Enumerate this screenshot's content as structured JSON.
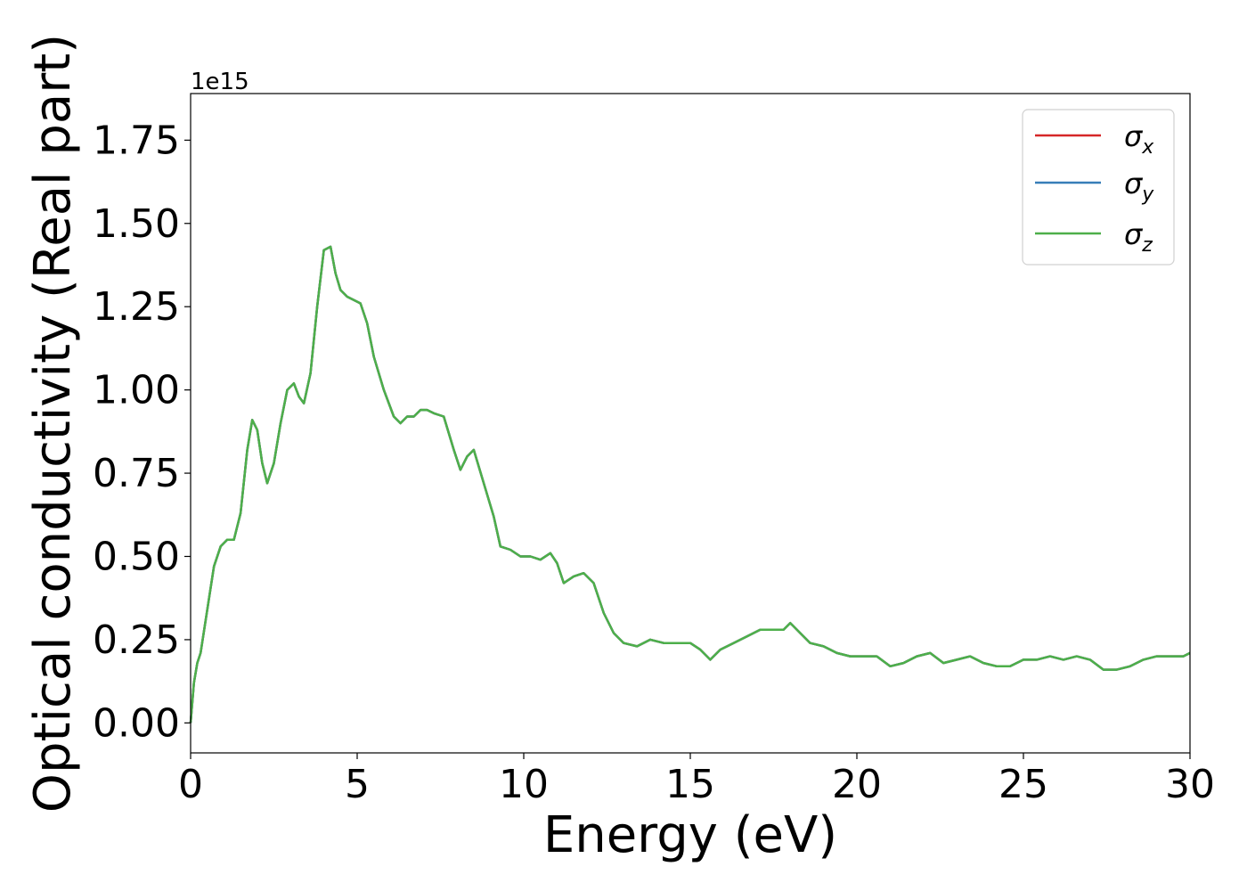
{
  "chart_data": {
    "type": "line",
    "xlabel": "Energy (eV)",
    "ylabel": "Optical conductivity (Real part)",
    "y_offset_label": "1e15",
    "y_multiplier": 1000000000000000.0,
    "xlim": [
      0,
      30
    ],
    "ylim": [
      -0.09,
      1.89
    ],
    "xticks": [
      0,
      5,
      10,
      15,
      20,
      25,
      30
    ],
    "xtick_labels": [
      "0",
      "5",
      "10",
      "15",
      "20",
      "25",
      "30"
    ],
    "yticks": [
      0.0,
      0.25,
      0.5,
      0.75,
      1.0,
      1.25,
      1.5,
      1.75
    ],
    "ytick_labels": [
      "0.00",
      "0.25",
      "0.50",
      "0.75",
      "1.00",
      "1.25",
      "1.50",
      "1.75"
    ],
    "grid": false,
    "legend_position": "top-right",
    "x": [
      0,
      0.1,
      0.2,
      0.3,
      0.5,
      0.7,
      0.9,
      1.1,
      1.3,
      1.5,
      1.7,
      1.85,
      2.0,
      2.15,
      2.3,
      2.5,
      2.7,
      2.9,
      3.1,
      3.25,
      3.4,
      3.6,
      3.8,
      4.0,
      4.2,
      4.35,
      4.5,
      4.7,
      4.9,
      5.1,
      5.3,
      5.5,
      5.8,
      6.1,
      6.3,
      6.5,
      6.7,
      6.9,
      7.1,
      7.3,
      7.6,
      7.9,
      8.1,
      8.3,
      8.5,
      8.8,
      9.1,
      9.3,
      9.6,
      9.9,
      10.2,
      10.5,
      10.8,
      11.0,
      11.2,
      11.5,
      11.8,
      12.1,
      12.4,
      12.7,
      13.0,
      13.4,
      13.8,
      14.2,
      14.6,
      15.0,
      15.3,
      15.6,
      15.9,
      16.3,
      16.7,
      17.1,
      17.5,
      17.8,
      18.0,
      18.3,
      18.6,
      19.0,
      19.4,
      19.8,
      20.2,
      20.6,
      21.0,
      21.4,
      21.8,
      22.2,
      22.6,
      23.0,
      23.4,
      23.8,
      24.2,
      24.6,
      25.0,
      25.4,
      25.8,
      26.2,
      26.6,
      27.0,
      27.4,
      27.8,
      28.2,
      28.6,
      29.0,
      29.4,
      29.8,
      30.0
    ],
    "series": [
      {
        "name": "σ_x",
        "label_main": "σ",
        "label_sub": "x",
        "color": "#d62728",
        "y": [
          0.0,
          0.12,
          0.18,
          0.21,
          0.34,
          0.47,
          0.53,
          0.55,
          0.55,
          0.63,
          0.82,
          0.91,
          0.88,
          0.78,
          0.72,
          0.78,
          0.9,
          1.0,
          1.02,
          0.98,
          0.96,
          1.05,
          1.25,
          1.42,
          1.43,
          1.35,
          1.3,
          1.28,
          1.27,
          1.26,
          1.2,
          1.1,
          1.0,
          0.92,
          0.9,
          0.92,
          0.92,
          0.94,
          0.94,
          0.93,
          0.92,
          0.82,
          0.76,
          0.8,
          0.82,
          0.72,
          0.62,
          0.53,
          0.52,
          0.5,
          0.5,
          0.49,
          0.51,
          0.48,
          0.42,
          0.44,
          0.45,
          0.42,
          0.33,
          0.27,
          0.24,
          0.23,
          0.25,
          0.24,
          0.24,
          0.24,
          0.22,
          0.19,
          0.22,
          0.24,
          0.26,
          0.28,
          0.28,
          0.28,
          0.3,
          0.27,
          0.24,
          0.23,
          0.21,
          0.2,
          0.2,
          0.2,
          0.17,
          0.18,
          0.2,
          0.21,
          0.18,
          0.19,
          0.2,
          0.18,
          0.17,
          0.17,
          0.19,
          0.19,
          0.2,
          0.19,
          0.2,
          0.19,
          0.16,
          0.16,
          0.17,
          0.19,
          0.2,
          0.2,
          0.2,
          0.21
        ]
      },
      {
        "name": "σ_y",
        "label_main": "σ",
        "label_sub": "y",
        "color": "#377eb8",
        "y": [
          0.0,
          0.12,
          0.18,
          0.21,
          0.34,
          0.47,
          0.53,
          0.55,
          0.55,
          0.63,
          0.82,
          0.91,
          0.88,
          0.78,
          0.72,
          0.78,
          0.9,
          1.0,
          1.02,
          0.98,
          0.96,
          1.05,
          1.25,
          1.42,
          1.43,
          1.35,
          1.3,
          1.28,
          1.27,
          1.26,
          1.2,
          1.1,
          1.0,
          0.92,
          0.9,
          0.92,
          0.92,
          0.94,
          0.94,
          0.93,
          0.92,
          0.82,
          0.76,
          0.8,
          0.82,
          0.72,
          0.62,
          0.53,
          0.52,
          0.5,
          0.5,
          0.49,
          0.51,
          0.48,
          0.42,
          0.44,
          0.45,
          0.42,
          0.33,
          0.27,
          0.24,
          0.23,
          0.25,
          0.24,
          0.24,
          0.24,
          0.22,
          0.19,
          0.22,
          0.24,
          0.26,
          0.28,
          0.28,
          0.28,
          0.3,
          0.27,
          0.24,
          0.23,
          0.21,
          0.2,
          0.2,
          0.2,
          0.17,
          0.18,
          0.2,
          0.21,
          0.18,
          0.19,
          0.2,
          0.18,
          0.17,
          0.17,
          0.19,
          0.19,
          0.2,
          0.19,
          0.2,
          0.19,
          0.16,
          0.16,
          0.17,
          0.19,
          0.2,
          0.2,
          0.2,
          0.21
        ]
      },
      {
        "name": "σ_z",
        "label_main": "σ",
        "label_sub": "z",
        "color": "#4daf4a",
        "y": [
          0.0,
          0.12,
          0.18,
          0.21,
          0.34,
          0.47,
          0.53,
          0.55,
          0.55,
          0.63,
          0.82,
          0.91,
          0.88,
          0.78,
          0.72,
          0.78,
          0.9,
          1.0,
          1.02,
          0.98,
          0.96,
          1.05,
          1.25,
          1.42,
          1.43,
          1.35,
          1.3,
          1.28,
          1.27,
          1.26,
          1.2,
          1.1,
          1.0,
          0.92,
          0.9,
          0.92,
          0.92,
          0.94,
          0.94,
          0.93,
          0.92,
          0.82,
          0.76,
          0.8,
          0.82,
          0.72,
          0.62,
          0.53,
          0.52,
          0.5,
          0.5,
          0.49,
          0.51,
          0.48,
          0.42,
          0.44,
          0.45,
          0.42,
          0.33,
          0.27,
          0.24,
          0.23,
          0.25,
          0.24,
          0.24,
          0.24,
          0.22,
          0.19,
          0.22,
          0.24,
          0.26,
          0.28,
          0.28,
          0.28,
          0.3,
          0.27,
          0.24,
          0.23,
          0.21,
          0.2,
          0.2,
          0.2,
          0.17,
          0.18,
          0.2,
          0.21,
          0.18,
          0.19,
          0.2,
          0.18,
          0.17,
          0.17,
          0.19,
          0.19,
          0.2,
          0.19,
          0.2,
          0.19,
          0.16,
          0.16,
          0.17,
          0.19,
          0.2,
          0.2,
          0.2,
          0.21
        ]
      }
    ]
  }
}
